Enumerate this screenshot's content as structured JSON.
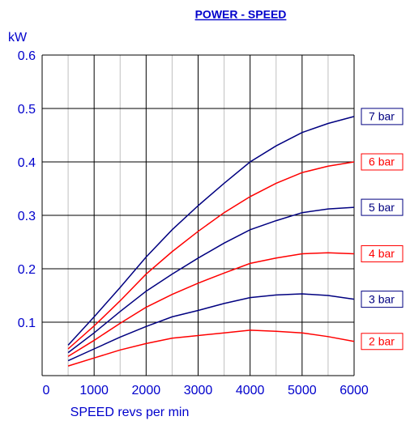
{
  "chart_data": {
    "type": "line",
    "title": "POWER - SPEED",
    "y_label": "kW",
    "x_label": "SPEED revs per min",
    "x": [
      500,
      1000,
      1500,
      2000,
      2500,
      3000,
      3500,
      4000,
      4500,
      5000,
      5500,
      6000
    ],
    "series": [
      {
        "name": "7 bar",
        "color": "#000080",
        "values": [
          0.057,
          0.11,
          0.165,
          0.222,
          0.273,
          0.318,
          0.36,
          0.4,
          0.43,
          0.455,
          0.472,
          0.485
        ]
      },
      {
        "name": "6 bar",
        "color": "#ff0000",
        "values": [
          0.05,
          0.093,
          0.14,
          0.19,
          0.232,
          0.27,
          0.305,
          0.335,
          0.36,
          0.38,
          0.392,
          0.4
        ]
      },
      {
        "name": "5 bar",
        "color": "#000080",
        "values": [
          0.043,
          0.08,
          0.12,
          0.158,
          0.19,
          0.22,
          0.248,
          0.273,
          0.29,
          0.305,
          0.312,
          0.315
        ]
      },
      {
        "name": "4 bar",
        "color": "#ff0000",
        "values": [
          0.036,
          0.066,
          0.098,
          0.128,
          0.152,
          0.173,
          0.192,
          0.21,
          0.22,
          0.228,
          0.23,
          0.228
        ]
      },
      {
        "name": "3 bar",
        "color": "#000080",
        "values": [
          0.028,
          0.05,
          0.072,
          0.092,
          0.11,
          0.122,
          0.135,
          0.146,
          0.151,
          0.153,
          0.15,
          0.143
        ]
      },
      {
        "name": "2 bar",
        "color": "#ff0000",
        "values": [
          0.018,
          0.033,
          0.048,
          0.06,
          0.07,
          0.075,
          0.08,
          0.085,
          0.083,
          0.08,
          0.073,
          0.064
        ]
      }
    ],
    "xlim": [
      0,
      6000
    ],
    "xticks": [
      0,
      1000,
      2000,
      3000,
      4000,
      5000,
      6000
    ],
    "x_minor_ticks": [
      500,
      1500,
      2500,
      3500,
      4500,
      5500
    ],
    "ylim": [
      0,
      0.6
    ],
    "yticks": [
      0.1,
      0.2,
      0.3,
      0.4,
      0.5,
      0.6
    ],
    "grid": true
  }
}
